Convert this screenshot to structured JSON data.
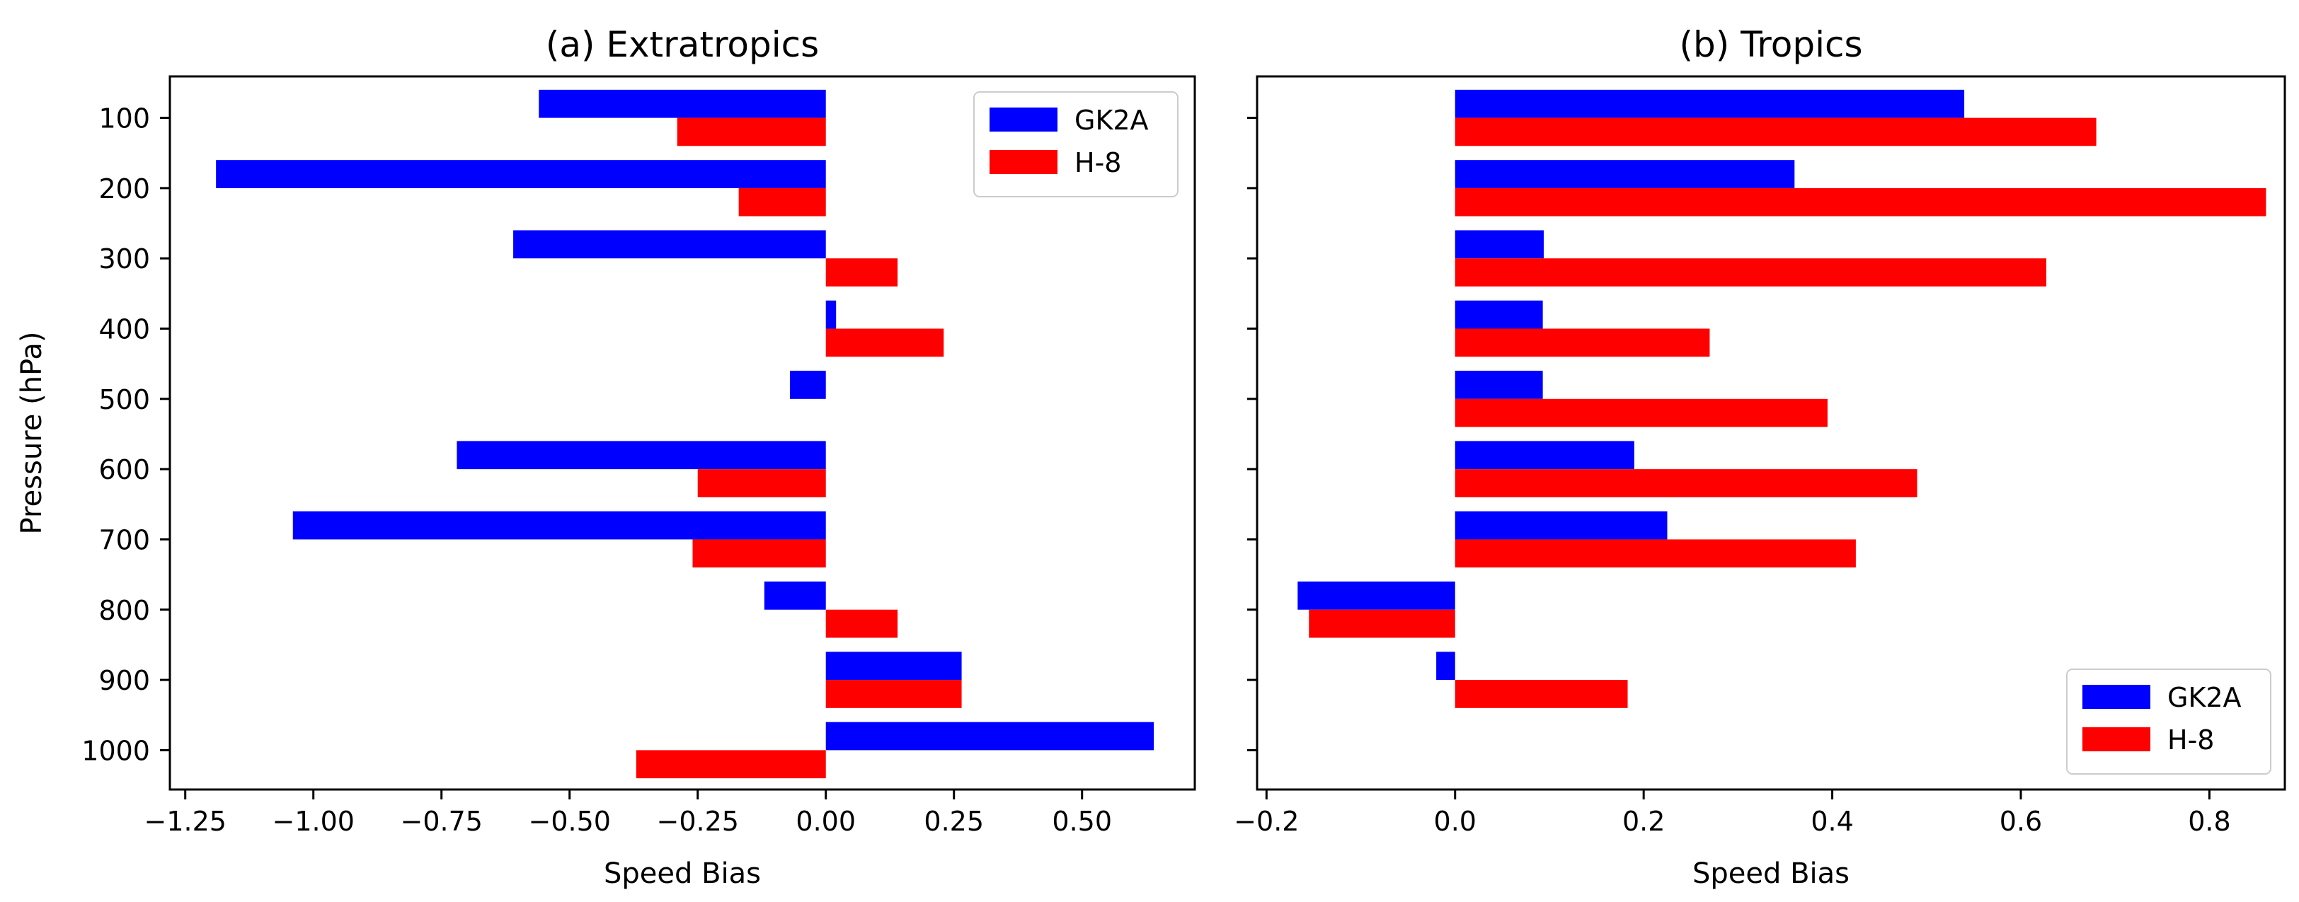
{
  "chart_data": [
    {
      "type": "bar",
      "orientation": "horizontal",
      "title": "(a) Extratropics",
      "xlabel": "Speed Bias",
      "ylabel": "Pressure (hPa)",
      "categories": [
        "100",
        "200",
        "300",
        "400",
        "500",
        "600",
        "700",
        "800",
        "900",
        "1000"
      ],
      "series": [
        {
          "name": "GK2A",
          "color": "#0000ff",
          "values": [
            -0.56,
            -1.19,
            -0.61,
            0.02,
            -0.07,
            -0.72,
            -1.04,
            -0.12,
            0.265,
            0.64
          ]
        },
        {
          "name": "H-8",
          "color": "#ff0000",
          "values": [
            -0.29,
            -0.17,
            0.14,
            0.23,
            0.0,
            -0.25,
            -0.26,
            0.14,
            0.265,
            -0.37
          ]
        }
      ],
      "xlim": [
        -1.28,
        0.72
      ],
      "xticks": [
        -1.25,
        -1.0,
        -0.75,
        -0.5,
        -0.25,
        0.0,
        0.25,
        0.5
      ],
      "xtick_labels": [
        "−1.25",
        "−1.00",
        "−0.75",
        "−0.50",
        "−0.25",
        "0.00",
        "0.25",
        "0.50"
      ],
      "legend": "top-right"
    },
    {
      "type": "bar",
      "orientation": "horizontal",
      "title": "(b) Tropics",
      "xlabel": "Speed Bias",
      "ylabel": "",
      "categories": [
        "100",
        "200",
        "300",
        "400",
        "500",
        "600",
        "700",
        "800",
        "900",
        "1000"
      ],
      "series": [
        {
          "name": "GK2A",
          "color": "#0000ff",
          "values": [
            0.54,
            0.36,
            0.094,
            0.093,
            0.093,
            0.19,
            0.225,
            -0.167,
            -0.02,
            0.0
          ]
        },
        {
          "name": "H-8",
          "color": "#ff0000",
          "values": [
            0.68,
            0.86,
            0.627,
            0.27,
            0.395,
            0.49,
            0.425,
            -0.155,
            0.183,
            0.0
          ]
        }
      ],
      "xlim": [
        -0.21,
        0.88
      ],
      "xticks": [
        -0.2,
        0.0,
        0.2,
        0.4,
        0.6,
        0.8
      ],
      "xtick_labels": [
        "−0.2",
        "0.0",
        "0.2",
        "0.4",
        "0.6",
        "0.8"
      ],
      "legend": "bottom-right"
    }
  ]
}
